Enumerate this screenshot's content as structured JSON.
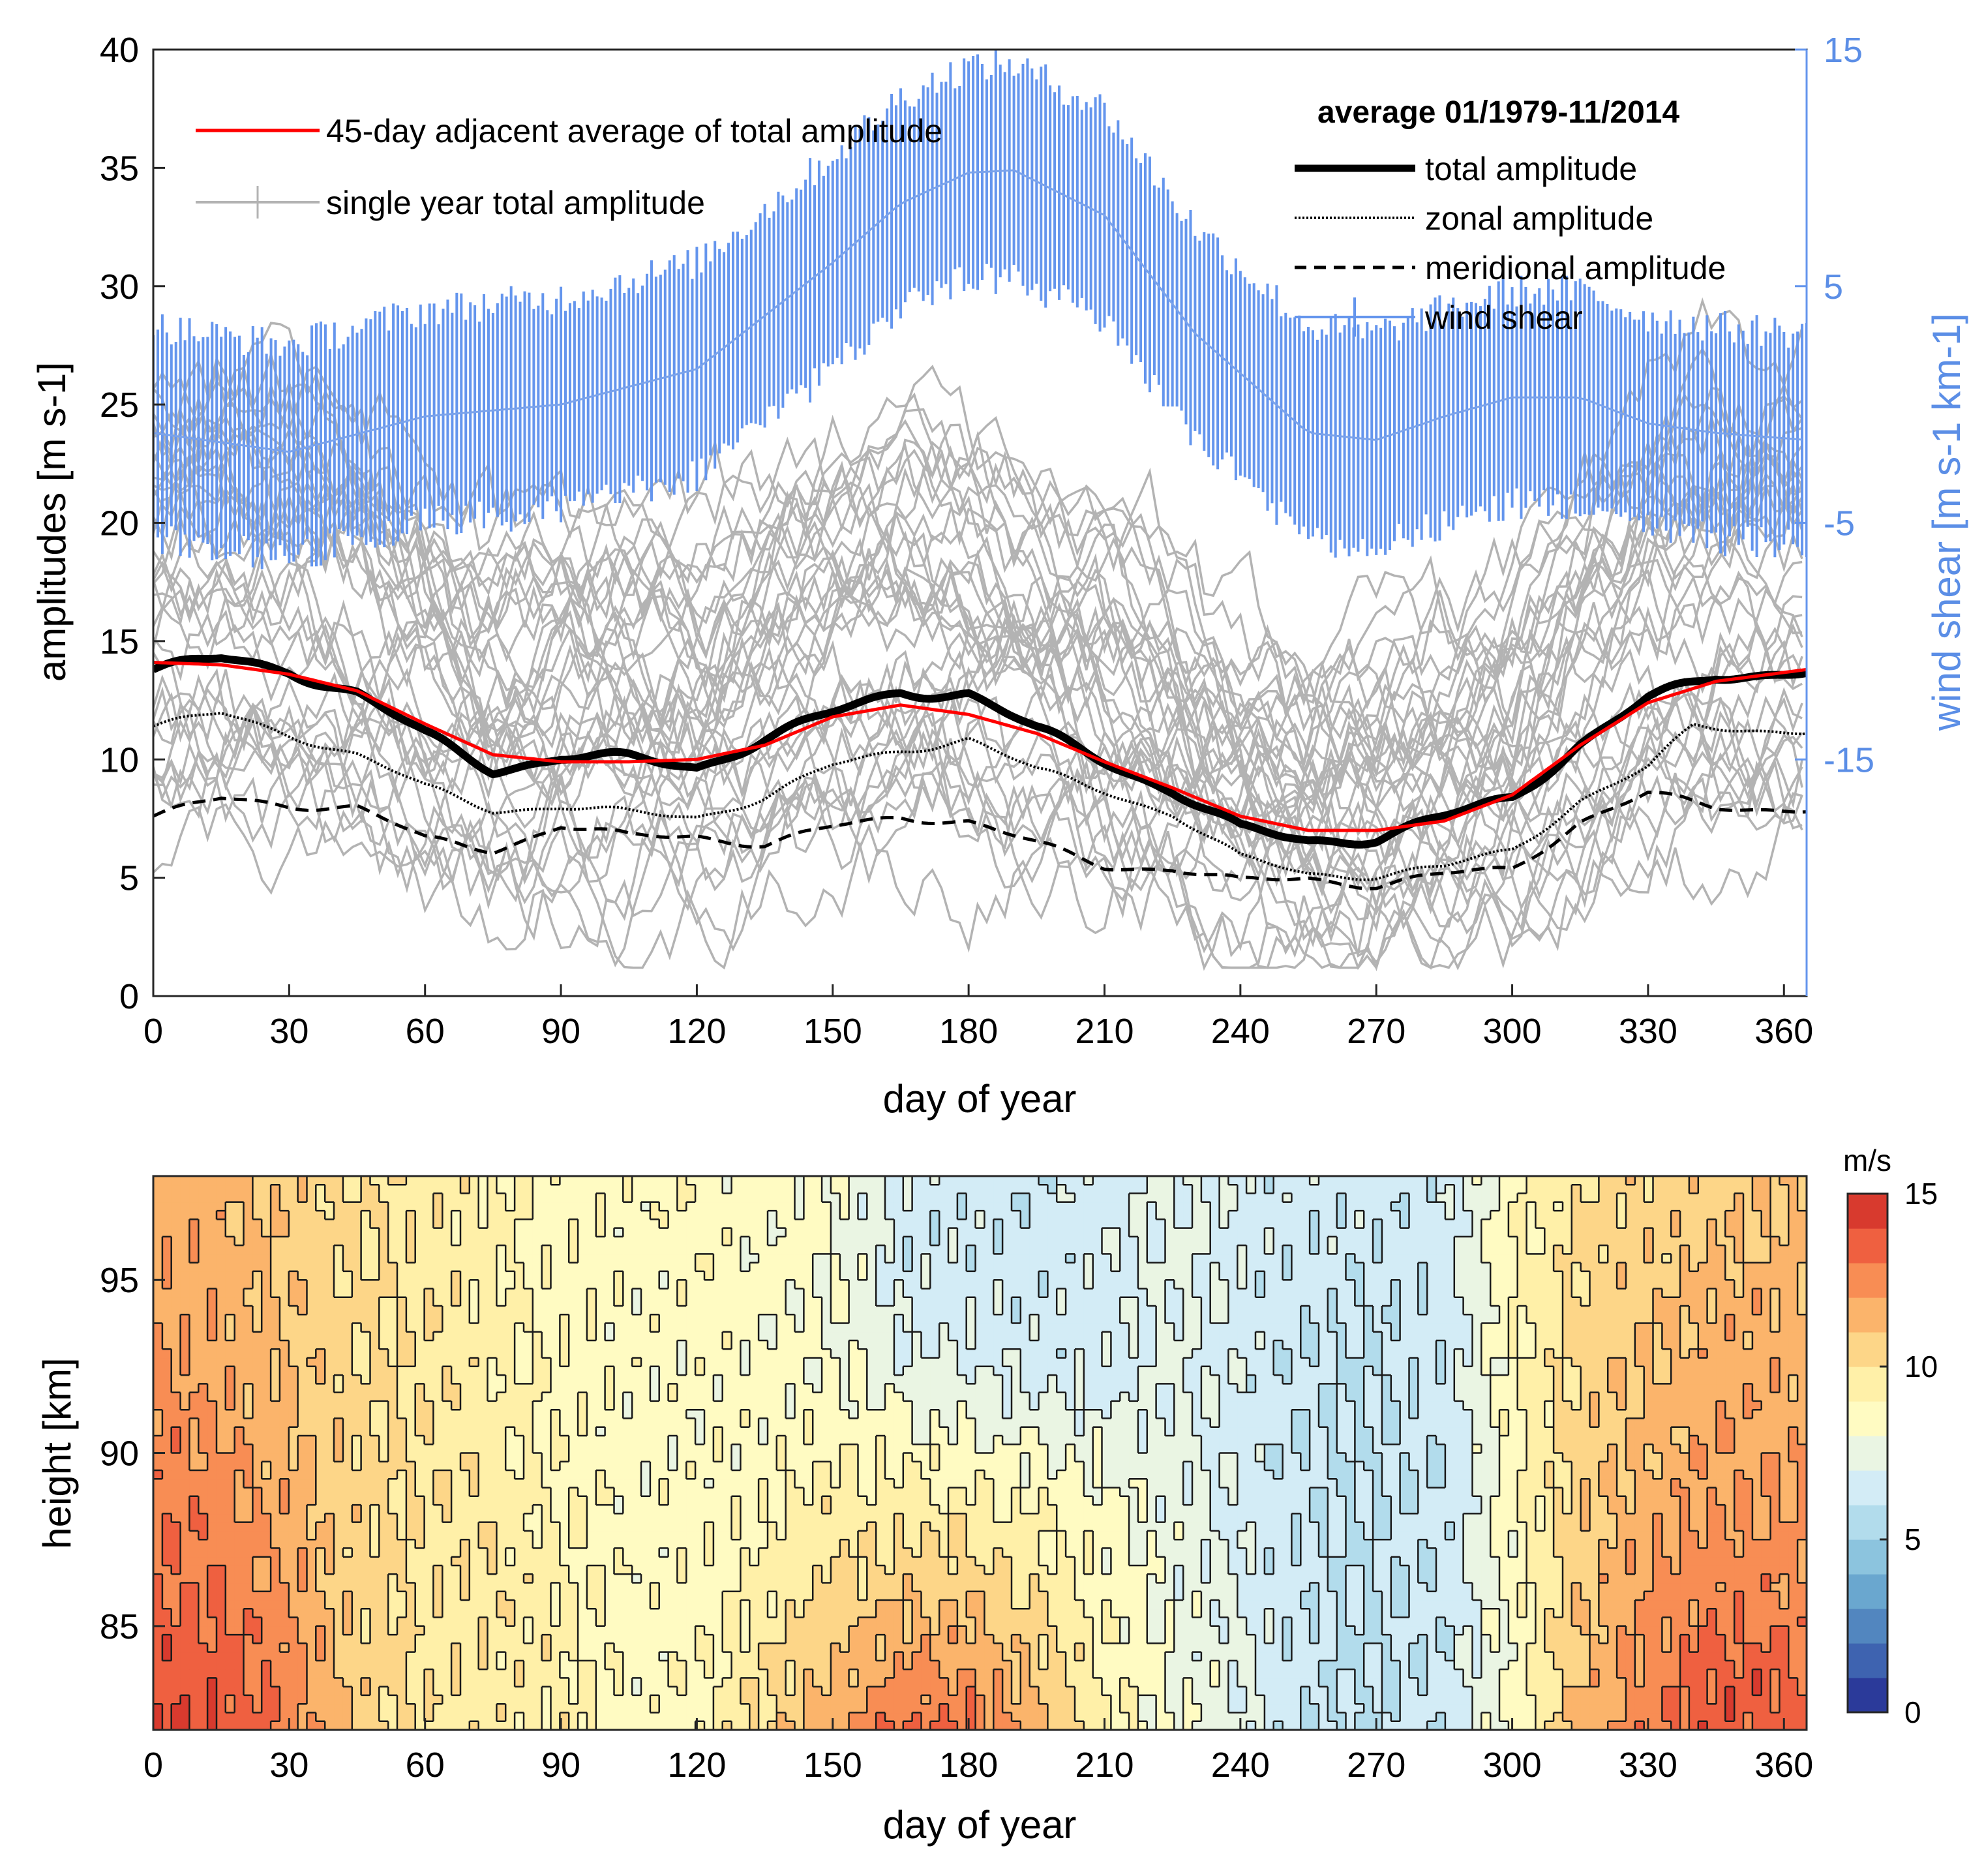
{
  "chart_data": [
    {
      "type": "line",
      "panel": "top",
      "xlabel": "day of year",
      "ylabel_left": "amplitudes [m s-1]",
      "ylabel_right": "wind shear [m s-1 km-1]",
      "xlim": [
        0,
        365
      ],
      "ylim_left": [
        0,
        40
      ],
      "ylim_right": [
        -25,
        15
      ],
      "xticks": [
        "0",
        "30",
        "60",
        "90",
        "120",
        "150",
        "180",
        "210",
        "240",
        "270",
        "300",
        "330",
        "360"
      ],
      "yticks_left": [
        "0",
        "5",
        "10",
        "15",
        "20",
        "25",
        "30",
        "35",
        "40"
      ],
      "yticks_right": [
        "-15",
        "-5",
        "5",
        "15"
      ],
      "legend_title": "average 01/1979-11/2014",
      "legend_left": [
        {
          "label": "45-day adjacent average of total amplitude",
          "color": "#ff0000"
        },
        {
          "label": "single year total amplitude",
          "color": "#b3b3b3"
        }
      ],
      "legend_right": [
        {
          "label": "total amplitude",
          "style": "solid-thick"
        },
        {
          "label": "zonal amplitude",
          "style": "dotted"
        },
        {
          "label": "meridional amplitude",
          "style": "dashed"
        },
        {
          "label": "wind shear",
          "style": "errorbar",
          "color": "#6495ed"
        }
      ],
      "series": [
        {
          "name": "45-day adjacent average of total amplitude",
          "x": [
            0,
            15,
            30,
            45,
            60,
            75,
            90,
            105,
            120,
            135,
            150,
            165,
            180,
            195,
            210,
            225,
            240,
            255,
            270,
            285,
            300,
            315,
            330,
            345,
            365
          ],
          "values": [
            14.1,
            14.0,
            13.6,
            12.9,
            11.5,
            10.2,
            9.9,
            9.9,
            10.0,
            10.6,
            11.8,
            12.3,
            11.9,
            11.1,
            9.9,
            8.8,
            7.6,
            7.0,
            7.0,
            7.4,
            8.5,
            10.6,
            12.4,
            13.3,
            13.8
          ]
        },
        {
          "name": "total amplitude",
          "x": [
            0,
            15,
            30,
            45,
            60,
            75,
            90,
            105,
            120,
            135,
            150,
            165,
            180,
            195,
            210,
            225,
            240,
            255,
            270,
            285,
            300,
            315,
            330,
            345,
            365
          ],
          "values": [
            13.8,
            14.2,
            13.8,
            12.8,
            11.0,
            9.6,
            10.1,
            10.0,
            9.7,
            10.9,
            11.9,
            12.9,
            12.8,
            11.2,
            10.0,
            8.7,
            7.0,
            6.6,
            6.7,
            7.5,
            8.4,
            10.7,
            12.5,
            13.5,
            13.8
          ]
        },
        {
          "name": "zonal amplitude",
          "x": [
            0,
            15,
            30,
            45,
            60,
            75,
            90,
            105,
            120,
            135,
            150,
            165,
            180,
            195,
            210,
            225,
            240,
            255,
            270,
            285,
            300,
            315,
            330,
            340,
            365
          ],
          "values": [
            11.4,
            11.9,
            11.1,
            10.2,
            8.8,
            7.9,
            8.0,
            7.7,
            7.6,
            8.4,
            9.7,
            10.4,
            10.9,
            9.5,
            8.7,
            7.7,
            5.8,
            5.2,
            5.1,
            5.4,
            6.2,
            8.3,
            9.6,
            11.4,
            11.2
          ]
        },
        {
          "name": "meridional amplitude",
          "x": [
            0,
            15,
            30,
            45,
            60,
            75,
            90,
            105,
            120,
            135,
            150,
            165,
            180,
            195,
            210,
            225,
            240,
            255,
            270,
            285,
            300,
            315,
            330,
            345,
            365
          ],
          "values": [
            7.6,
            8.3,
            8.1,
            8.0,
            6.6,
            6.2,
            7.2,
            6.7,
            6.8,
            6.4,
            7.1,
            7.6,
            7.4,
            6.4,
            5.5,
            5.4,
            4.8,
            5.0,
            4.7,
            5.1,
            5.4,
            7.4,
            8.5,
            8.0,
            7.9
          ]
        },
        {
          "name": "wind shear",
          "x": [
            0,
            30,
            60,
            90,
            120,
            150,
            165,
            180,
            190,
            210,
            230,
            255,
            270,
            285,
            300,
            315,
            330,
            345,
            365
          ],
          "values": [
            -1.2,
            -2.0,
            -0.5,
            0.0,
            1.5,
            6.0,
            8.5,
            9.8,
            9.9,
            8.0,
            3.0,
            -1.2,
            -1.5,
            -0.5,
            0.3,
            0.3,
            -0.8,
            -1.2,
            -1.5
          ],
          "error_halfwidth": 4.5
        }
      ]
    },
    {
      "type": "heatmap",
      "panel": "bottom",
      "subtype": "filled-contour",
      "xlabel": "day of year",
      "ylabel": "height [km]",
      "xlim": [
        0,
        365
      ],
      "ylim": [
        82,
        98
      ],
      "xticks": [
        "0",
        "30",
        "60",
        "90",
        "120",
        "150",
        "180",
        "210",
        "240",
        "270",
        "300",
        "330",
        "360"
      ],
      "yticks": [
        "85",
        "90",
        "95"
      ],
      "colorbar_label": "m/s",
      "colorbar_ticks": [
        "0",
        "5",
        "10",
        "15"
      ],
      "colorbar_range": [
        0,
        15
      ],
      "colorbar_step": 1,
      "colorbar_colors": [
        "#2b3a9a",
        "#3e63b0",
        "#5286bf",
        "#6aa7cf",
        "#8cc4de",
        "#b2dcec",
        "#d3ecf6",
        "#eaf5e3",
        "#fffbc2",
        "#fff0a8",
        "#fdd688",
        "#fbb46b",
        "#f88d54",
        "#ef6040",
        "#d83a2e"
      ],
      "grid_x": [
        0,
        15,
        30,
        45,
        60,
        75,
        90,
        105,
        120,
        135,
        150,
        165,
        180,
        195,
        210,
        225,
        240,
        255,
        270,
        285,
        300,
        315,
        330,
        345,
        365
      ],
      "grid_y": [
        82,
        84,
        86,
        88,
        90,
        92,
        94,
        96,
        98
      ],
      "values": [
        [
          14.3,
          14.0,
          12.6,
          10.8,
          9.8,
          9.6,
          9.3,
          8.6,
          8.8,
          10.3,
          11.8,
          13.2,
          13.0,
          11.6,
          9.3,
          8.0,
          7.2,
          6.1,
          6.0,
          6.2,
          8.3,
          11.3,
          12.6,
          13.6,
          13.3
        ],
        [
          13.6,
          13.3,
          12.5,
          10.6,
          9.8,
          9.8,
          9.3,
          8.6,
          8.6,
          9.8,
          11.0,
          12.0,
          11.8,
          10.6,
          9.0,
          7.8,
          7.1,
          6.1,
          6.0,
          6.2,
          8.3,
          11.0,
          12.4,
          13.4,
          13.1
        ],
        [
          13.1,
          13.0,
          12.0,
          10.6,
          9.8,
          9.8,
          9.3,
          8.6,
          8.5,
          9.4,
          10.3,
          10.8,
          10.6,
          9.8,
          8.6,
          7.6,
          7.0,
          6.1,
          6.0,
          6.3,
          8.4,
          10.8,
          12.1,
          12.6,
          12.3
        ],
        [
          12.9,
          12.6,
          11.6,
          10.4,
          9.8,
          9.8,
          9.0,
          8.6,
          8.5,
          8.9,
          9.6,
          9.8,
          9.7,
          9.1,
          8.4,
          7.5,
          6.8,
          6.1,
          6.0,
          6.3,
          8.6,
          10.8,
          11.6,
          12.1,
          12.1
        ],
        [
          12.6,
          12.1,
          11.3,
          10.4,
          9.8,
          9.5,
          8.8,
          8.5,
          8.3,
          8.6,
          8.9,
          8.6,
          8.3,
          8.1,
          7.8,
          7.3,
          6.6,
          6.1,
          6.0,
          6.0,
          8.6,
          10.6,
          11.3,
          11.8,
          11.8
        ],
        [
          12.3,
          11.8,
          11.0,
          10.2,
          9.8,
          9.3,
          8.8,
          8.6,
          8.3,
          8.4,
          8.3,
          7.6,
          7.2,
          6.8,
          6.6,
          7.2,
          6.6,
          6.1,
          6.0,
          6.3,
          8.8,
          10.4,
          11.1,
          11.6,
          11.6
        ],
        [
          12.0,
          11.6,
          10.8,
          10.2,
          9.8,
          9.3,
          8.8,
          8.6,
          8.5,
          8.4,
          8.1,
          6.8,
          6.6,
          6.6,
          6.5,
          7.2,
          6.7,
          6.2,
          6.0,
          6.3,
          8.9,
          10.3,
          10.8,
          11.4,
          11.4
        ],
        [
          11.8,
          11.5,
          10.7,
          10.1,
          9.6,
          9.1,
          8.6,
          8.6,
          8.6,
          8.4,
          8.1,
          6.6,
          6.3,
          6.5,
          6.6,
          7.3,
          6.8,
          6.4,
          6.2,
          6.5,
          8.8,
          10.2,
          10.6,
          11.0,
          11.1
        ],
        [
          11.6,
          11.3,
          10.6,
          10.0,
          9.6,
          9.1,
          8.6,
          8.6,
          8.6,
          8.4,
          8.1,
          6.8,
          6.3,
          6.4,
          6.6,
          7.2,
          6.9,
          6.5,
          6.3,
          6.6,
          8.6,
          10.0,
          10.5,
          10.8,
          11.0
        ]
      ]
    }
  ]
}
